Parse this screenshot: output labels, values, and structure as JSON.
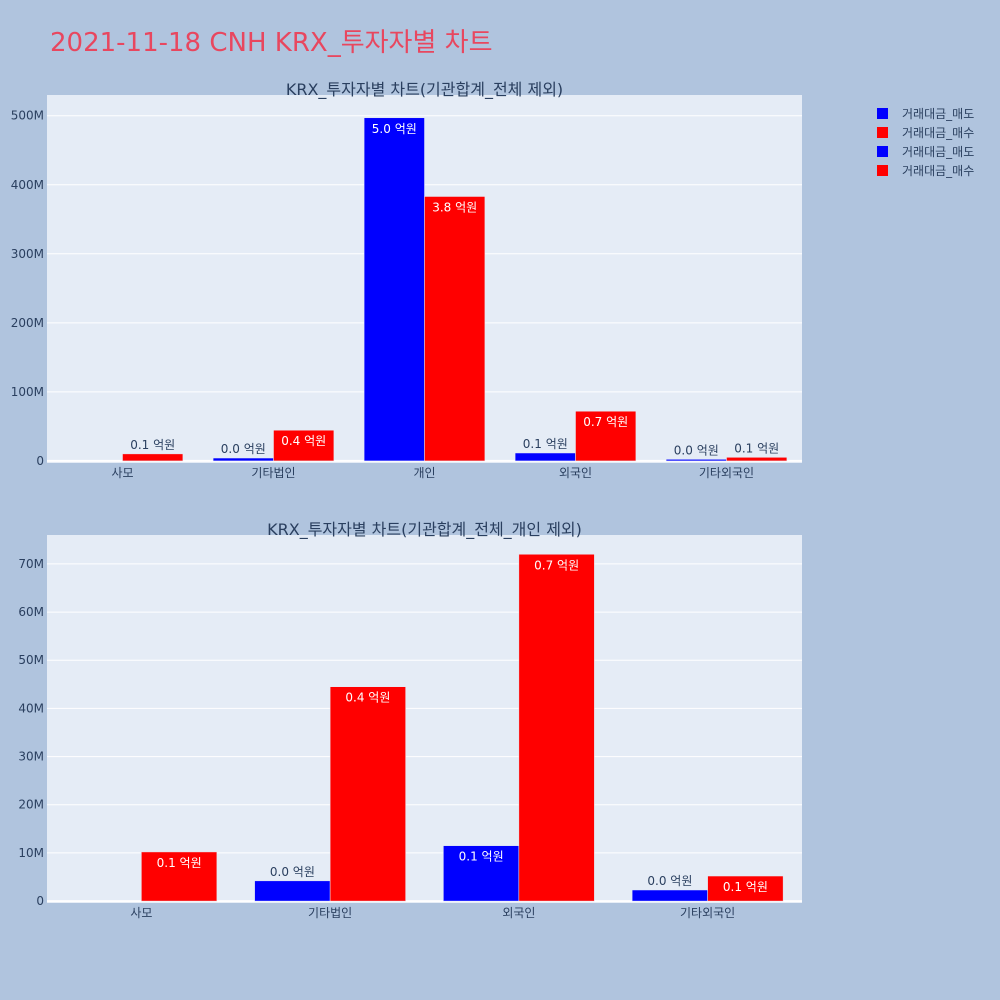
{
  "title": "2021-11-18 CNH KRX_투자자별 차트",
  "colors": {
    "sell": "#0000ff",
    "buy": "#ff0000",
    "plot_bg": "#e5ecf6",
    "page_bg": "#b0c4de"
  },
  "legend": {
    "placement": "right",
    "items": [
      {
        "label": "거래대금_매도",
        "color": "#0000ff"
      },
      {
        "label": "거래대금_매수",
        "color": "#ff0000"
      },
      {
        "label": "거래대금_매도",
        "color": "#0000ff"
      },
      {
        "label": "거래대금_매수",
        "color": "#ff0000"
      }
    ]
  },
  "chart_data": [
    {
      "type": "bar",
      "title": "KRX_투자자별 차트(기관합계_전체 제외)",
      "categories": [
        "사모",
        "기타법인",
        "개인",
        "외국인",
        "기타외국인"
      ],
      "y_ticks": [
        0,
        100,
        200,
        300,
        400,
        500
      ],
      "y_tick_labels": [
        "0",
        "100M",
        "200M",
        "300M",
        "400M",
        "500M"
      ],
      "ylim": [
        -3,
        530
      ],
      "grid": true,
      "series": [
        {
          "name": "거래대금_매도",
          "color": "#0000ff",
          "values": [
            0,
            4.2,
            497,
            11.5,
            2.3
          ],
          "labels": [
            "",
            "0.0 억원",
            "5.0 억원",
            "0.1 억원",
            "0.0 억원"
          ]
        },
        {
          "name": "거래대금_매수",
          "color": "#ff0000",
          "values": [
            10.2,
            44.5,
            383,
            72,
            5.2
          ],
          "labels": [
            "0.1 억원",
            "0.4 억원",
            "3.8 억원",
            "0.7 억원",
            "0.1 억원"
          ]
        }
      ]
    },
    {
      "type": "bar",
      "title": "KRX_투자자별 차트(기관합계_전체_개인 제외)",
      "categories": [
        "사모",
        "기타법인",
        "외국인",
        "기타외국인"
      ],
      "y_ticks": [
        0,
        10,
        20,
        30,
        40,
        50,
        60,
        70
      ],
      "y_tick_labels": [
        "0",
        "10M",
        "20M",
        "30M",
        "40M",
        "50M",
        "60M",
        "70M"
      ],
      "ylim": [
        -0.4,
        76
      ],
      "grid": true,
      "series": [
        {
          "name": "거래대금_매도",
          "color": "#0000ff",
          "values": [
            0,
            4.2,
            11.5,
            2.3
          ],
          "labels": [
            "",
            "0.0 억원",
            "0.1 억원",
            "0.0 억원"
          ]
        },
        {
          "name": "거래대금_매수",
          "color": "#ff0000",
          "values": [
            10.2,
            44.5,
            72,
            5.2
          ],
          "labels": [
            "0.1 억원",
            "0.4 억원",
            "0.7 억원",
            "0.1 억원"
          ]
        }
      ]
    }
  ]
}
